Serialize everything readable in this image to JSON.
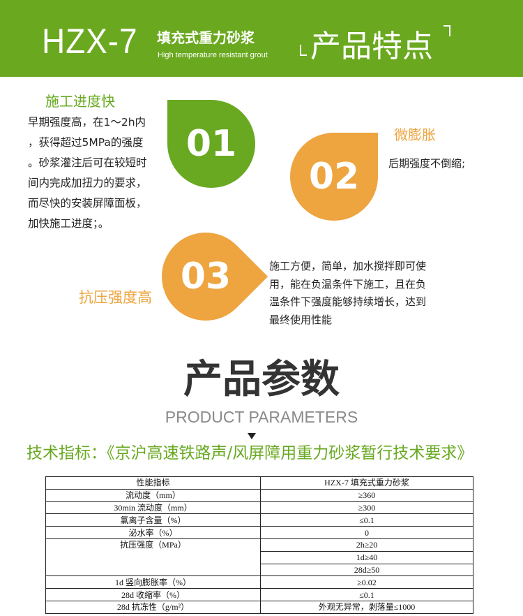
{
  "header": {
    "model": "HZX-7",
    "product_name": "填充式重力砂浆",
    "tagline": "High temperature resistant grout",
    "section_title": "产品特点",
    "bg_color": "#6aa91f"
  },
  "features": [
    {
      "number": "01",
      "title": "施工进度快",
      "color": "#68a921",
      "lines": [
        "早期强度高，在1～2h内",
        "，获得超过5MPa的强度",
        "。砂浆灌注后可在较短时",
        "间内完成加扭力的要求，",
        "而尽快的安装屏障面板，",
        "加快施工进度；。"
      ]
    },
    {
      "number": "02",
      "title": "微膨胀",
      "color": "#eea43f",
      "lines": [
        "后期强度不倒缩;"
      ]
    },
    {
      "number": "03",
      "title": "抗压强度高",
      "color": "#eea43f",
      "lines": [
        "施工方便，简单，加水搅拌即可使",
        "用，能在负温条件下施工，且在负",
        "温条件下强度能够持续增长，达到",
        "最终使用性能"
      ]
    }
  ],
  "params": {
    "title": "产品参数",
    "subtitle": "PRODUCT PARAMETERS",
    "standard": "技术指标：《京沪高速铁路声/风屏障用重力砂浆暂行技术要求》",
    "table": {
      "headers": [
        "性能指标",
        "HZX-7 填充式重力砂浆"
      ],
      "rows": [
        {
          "name": "流动度（mm）",
          "values": [
            "≥360"
          ]
        },
        {
          "name": "30min 流动度（mm）",
          "values": [
            "≥300"
          ]
        },
        {
          "name": "氯离子含量（%）",
          "values": [
            "≤0.1"
          ]
        },
        {
          "name": "泌水率（%）",
          "values": [
            "0"
          ]
        },
        {
          "name": "抗压强度（MPa）",
          "values": [
            "2h≥20",
            "1d≥40",
            "28d≥50"
          ]
        },
        {
          "name": "1d 竖向膨胀率（%）",
          "values": [
            "≥0.02"
          ]
        },
        {
          "name": "28d 收缩率（%）",
          "values": [
            "≤0.1"
          ]
        },
        {
          "name": "28d 抗冻性（g/m²）",
          "values": [
            "外观无异常，剥落量≤1000"
          ]
        }
      ]
    }
  }
}
